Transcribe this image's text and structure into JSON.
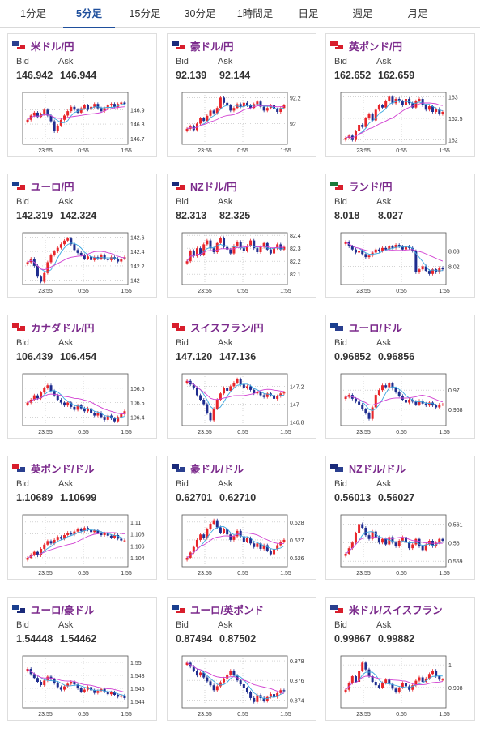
{
  "tabs": [
    {
      "label": "1分足",
      "active": false
    },
    {
      "label": "5分足",
      "active": true
    },
    {
      "label": "15分足",
      "active": false
    },
    {
      "label": "30分足",
      "active": false
    },
    {
      "label": "1時間足",
      "active": false
    },
    {
      "label": "日足",
      "active": false
    },
    {
      "label": "週足",
      "active": false
    },
    {
      "label": "月足",
      "active": false
    }
  ],
  "bid_label": "Bid",
  "ask_label": "Ask",
  "colors": {
    "up": "#e8262b",
    "down": "#1f2d8f",
    "ma_short": "#3ba7e0",
    "ma_long": "#d13fd1",
    "pair_text": "#7b2a8c",
    "tab_active": "#1f4f9c"
  },
  "cards": [
    {
      "pair": "米ドル/円",
      "bid": "146.942",
      "ask": "146.944",
      "flags": [
        "#2a3f8f",
        "#d81e2c"
      ],
      "chart_data": {
        "type": "candlestick",
        "x_ticks": [
          "23:55",
          "0:55",
          "1:55"
        ],
        "y_ticks": [
          "146.9",
          "146.8",
          "146.7"
        ],
        "ylim": [
          146.66,
          147.02
        ],
        "closes": [
          146.83,
          146.86,
          146.88,
          146.85,
          146.87,
          146.9,
          146.86,
          146.82,
          146.75,
          146.79,
          146.83,
          146.86,
          146.89,
          146.92,
          146.9,
          146.88,
          146.91,
          146.93,
          146.9,
          146.92,
          146.94,
          146.91,
          146.89,
          146.91,
          146.93,
          146.94,
          146.92,
          146.94,
          146.95,
          146.94
        ]
      }
    },
    {
      "pair": "豪ドル/円",
      "bid": "92.139",
      "ask": "92.144",
      "flags": [
        "#1a2a7a",
        "#d81e2c"
      ],
      "chart_data": {
        "type": "candlestick",
        "x_ticks": [
          "23:55",
          "0:55",
          "1:55"
        ],
        "y_ticks": [
          "92.2",
          "92"
        ],
        "ylim": [
          91.84,
          92.24
        ],
        "closes": [
          91.96,
          91.98,
          91.95,
          92.0,
          92.04,
          92.02,
          92.06,
          92.1,
          92.08,
          92.12,
          92.2,
          92.16,
          92.14,
          92.1,
          92.12,
          92.15,
          92.13,
          92.16,
          92.14,
          92.12,
          92.15,
          92.17,
          92.13,
          92.1,
          92.12,
          92.14,
          92.11,
          92.09,
          92.12,
          92.14
        ]
      }
    },
    {
      "pair": "英ポンド/円",
      "bid": "162.652",
      "ask": "162.659",
      "flags": [
        "#d81e2c",
        "#d81e2c"
      ],
      "chart_data": {
        "type": "candlestick",
        "x_ticks": [
          "23:55",
          "0:55",
          "1:55"
        ],
        "y_ticks": [
          "163",
          "162.5",
          "162"
        ],
        "ylim": [
          161.9,
          163.1
        ],
        "closes": [
          162.05,
          162.1,
          162.0,
          162.2,
          162.35,
          162.3,
          162.5,
          162.6,
          162.45,
          162.7,
          162.8,
          162.75,
          162.9,
          163.0,
          162.85,
          162.95,
          162.9,
          162.8,
          162.95,
          162.85,
          162.75,
          162.9,
          162.95,
          162.8,
          162.7,
          162.78,
          162.65,
          162.72,
          162.6,
          162.65
        ]
      }
    },
    {
      "pair": "ユーロ/円",
      "bid": "142.319",
      "ask": "142.324",
      "flags": [
        "#1a3f8f",
        "#d81e2c"
      ],
      "chart_data": {
        "type": "candlestick",
        "x_ticks": [
          "23:55",
          "0:55",
          "1:55"
        ],
        "y_ticks": [
          "142.6",
          "142.4",
          "142.2",
          "142"
        ],
        "ylim": [
          141.94,
          142.66
        ],
        "closes": [
          142.25,
          142.3,
          142.2,
          142.05,
          141.98,
          142.1,
          142.25,
          142.35,
          142.4,
          142.45,
          142.5,
          142.55,
          142.58,
          142.5,
          142.42,
          142.38,
          142.35,
          142.3,
          142.33,
          142.28,
          142.32,
          142.3,
          142.35,
          142.3,
          142.28,
          142.32,
          142.3,
          142.26,
          142.3,
          142.32
        ]
      }
    },
    {
      "pair": "NZドル/円",
      "bid": "82.313",
      "ask": "82.325",
      "flags": [
        "#1a2a7a",
        "#d81e2c"
      ],
      "chart_data": {
        "type": "candlestick",
        "x_ticks": [
          "23:55",
          "0:55",
          "1:55"
        ],
        "y_ticks": [
          "82.4",
          "82.3",
          "82.2",
          "82.1"
        ],
        "ylim": [
          82.02,
          82.42
        ],
        "closes": [
          82.2,
          82.28,
          82.24,
          82.3,
          82.25,
          82.33,
          82.36,
          82.3,
          82.27,
          82.34,
          82.38,
          82.31,
          82.29,
          82.26,
          82.32,
          82.35,
          82.3,
          82.28,
          82.32,
          82.36,
          82.3,
          82.27,
          82.31,
          82.34,
          82.29,
          82.26,
          82.3,
          82.33,
          82.29,
          82.31
        ]
      }
    },
    {
      "pair": "ランド/円",
      "bid": "8.018",
      "ask": "8.027",
      "flags": [
        "#1b7a3a",
        "#d81e2c"
      ],
      "chart_data": {
        "type": "candlestick",
        "x_ticks": [
          "23:55",
          "0:55",
          "1:55"
        ],
        "y_ticks": [
          "8.03",
          "8.02"
        ],
        "ylim": [
          8.008,
          8.042
        ],
        "closes": [
          8.036,
          8.033,
          8.031,
          8.029,
          8.03,
          8.028,
          8.026,
          8.027,
          8.029,
          8.031,
          8.03,
          8.032,
          8.031,
          8.033,
          8.032,
          8.034,
          8.033,
          8.031,
          8.033,
          8.032,
          8.03,
          8.016,
          8.018,
          8.02,
          8.017,
          8.015,
          8.018,
          8.016,
          8.019,
          8.018
        ]
      }
    },
    {
      "pair": "カナダドル/円",
      "bid": "106.439",
      "ask": "106.454",
      "flags": [
        "#d81e2c",
        "#d81e2c"
      ],
      "chart_data": {
        "type": "candlestick",
        "x_ticks": [
          "23:55",
          "0:55",
          "1:55"
        ],
        "y_ticks": [
          "106.6",
          "106.5",
          "106.4"
        ],
        "ylim": [
          106.34,
          106.7
        ],
        "closes": [
          106.5,
          106.52,
          106.55,
          106.53,
          106.57,
          106.6,
          106.62,
          106.58,
          106.55,
          106.52,
          106.5,
          106.48,
          106.5,
          106.47,
          106.45,
          106.48,
          106.46,
          106.44,
          106.46,
          106.43,
          106.41,
          106.43,
          106.4,
          106.38,
          106.41,
          106.39,
          106.37,
          106.4,
          106.42,
          106.44
        ]
      }
    },
    {
      "pair": "スイスフラン/円",
      "bid": "147.120",
      "ask": "147.136",
      "flags": [
        "#d81e2c",
        "#d81e2c"
      ],
      "chart_data": {
        "type": "candlestick",
        "x_ticks": [
          "23:55",
          "0:55",
          "1:55"
        ],
        "y_ticks": [
          "147.2",
          "147",
          "146.8"
        ],
        "ylim": [
          146.76,
          147.34
        ],
        "closes": [
          147.26,
          147.22,
          147.18,
          147.1,
          147.05,
          147.0,
          146.9,
          146.82,
          146.95,
          147.05,
          147.12,
          147.18,
          147.15,
          147.2,
          147.24,
          147.28,
          147.22,
          147.18,
          147.2,
          147.16,
          147.12,
          147.14,
          147.1,
          147.08,
          147.12,
          147.1,
          147.06,
          147.09,
          147.12,
          147.13
        ]
      }
    },
    {
      "pair": "ユーロ/ドル",
      "bid": "0.96852",
      "ask": "0.96856",
      "flags": [
        "#1a3f8f",
        "#2a3f8f"
      ],
      "chart_data": {
        "type": "candlestick",
        "x_ticks": [
          "23:55",
          "0:55",
          "1:55"
        ],
        "y_ticks": [
          "0.97",
          "0.968"
        ],
        "ylim": [
          0.9663,
          0.9717
        ],
        "closes": [
          0.9693,
          0.9695,
          0.9691,
          0.9688,
          0.9685,
          0.968,
          0.9676,
          0.967,
          0.9682,
          0.9695,
          0.97,
          0.9705,
          0.9703,
          0.9707,
          0.9702,
          0.9698,
          0.9694,
          0.969,
          0.9687,
          0.969,
          0.9688,
          0.9685,
          0.9689,
          0.9686,
          0.9684,
          0.9687,
          0.9684,
          0.9682,
          0.9685,
          0.9685
        ]
      }
    },
    {
      "pair": "英ポンド/ドル",
      "bid": "1.10689",
      "ask": "1.10699",
      "flags": [
        "#d81e2c",
        "#2a3f8f"
      ],
      "chart_data": {
        "type": "candlestick",
        "x_ticks": [
          "23:55",
          "0:55",
          "1:55"
        ],
        "y_ticks": [
          "1.11",
          "1.108",
          "1.106",
          "1.104"
        ],
        "ylim": [
          1.1025,
          1.1112
        ],
        "closes": [
          1.104,
          1.1045,
          1.105,
          1.1044,
          1.1055,
          1.1062,
          1.1068,
          1.1064,
          1.107,
          1.1075,
          1.1072,
          1.1078,
          1.1082,
          1.1079,
          1.1084,
          1.1088,
          1.1085,
          1.109,
          1.1087,
          1.1083,
          1.1086,
          1.1082,
          1.1078,
          1.1081,
          1.1077,
          1.1074,
          1.1078,
          1.1072,
          1.1069,
          1.1069
        ]
      }
    },
    {
      "pair": "豪ドル/ドル",
      "bid": "0.62701",
      "ask": "0.62710",
      "flags": [
        "#1a2a7a",
        "#2a3f8f"
      ],
      "chart_data": {
        "type": "candlestick",
        "x_ticks": [
          "23:55",
          "0:55",
          "1:55"
        ],
        "y_ticks": [
          "0.628",
          "0.627",
          "0.626"
        ],
        "ylim": [
          0.6255,
          0.6284
        ],
        "closes": [
          0.626,
          0.6263,
          0.6266,
          0.627,
          0.6273,
          0.6271,
          0.6276,
          0.6279,
          0.6281,
          0.6277,
          0.6274,
          0.6276,
          0.6273,
          0.627,
          0.6272,
          0.6275,
          0.6272,
          0.6269,
          0.6271,
          0.6268,
          0.6266,
          0.6268,
          0.6265,
          0.6267,
          0.6264,
          0.6262,
          0.6265,
          0.6267,
          0.6269,
          0.627
        ]
      }
    },
    {
      "pair": "NZドル/ドル",
      "bid": "0.56013",
      "ask": "0.56027",
      "flags": [
        "#1a2a7a",
        "#2a3f8f"
      ],
      "chart_data": {
        "type": "candlestick",
        "x_ticks": [
          "23:55",
          "0:55",
          "1:55"
        ],
        "y_ticks": [
          "0.561",
          "0.56",
          "0.559"
        ],
        "ylim": [
          0.5587,
          0.5615
        ],
        "closes": [
          0.5594,
          0.5597,
          0.56,
          0.5605,
          0.561,
          0.5608,
          0.5604,
          0.5602,
          0.5606,
          0.5603,
          0.56,
          0.5602,
          0.5599,
          0.5603,
          0.56,
          0.5598,
          0.5601,
          0.5603,
          0.56,
          0.5597,
          0.5599,
          0.5602,
          0.5598,
          0.5596,
          0.5599,
          0.5601,
          0.5598,
          0.56,
          0.5602,
          0.5601
        ]
      }
    },
    {
      "pair": "ユーロ/豪ドル",
      "bid": "1.54448",
      "ask": "1.54462",
      "flags": [
        "#1a3f8f",
        "#1a2a7a"
      ],
      "chart_data": {
        "type": "candlestick",
        "x_ticks": [
          "23:55",
          "0:55",
          "1:55"
        ],
        "y_ticks": [
          "1.55",
          "1.548",
          "1.546",
          "1.544"
        ],
        "ylim": [
          1.543,
          1.551
        ],
        "closes": [
          1.549,
          1.5482,
          1.5476,
          1.547,
          1.5465,
          1.5472,
          1.5478,
          1.5474,
          1.5468,
          1.5462,
          1.5458,
          1.5463,
          1.5467,
          1.547,
          1.5466,
          1.546,
          1.5455,
          1.5458,
          1.5462,
          1.5457,
          1.5453,
          1.5456,
          1.5459,
          1.5455,
          1.5451,
          1.5454,
          1.545,
          1.5447,
          1.5449,
          1.5445
        ]
      }
    },
    {
      "pair": "ユーロ/英ポンド",
      "bid": "0.87494",
      "ask": "0.87502",
      "flags": [
        "#1a3f8f",
        "#d81e2c"
      ],
      "chart_data": {
        "type": "candlestick",
        "x_ticks": [
          "23:55",
          "0:55",
          "1:55"
        ],
        "y_ticks": [
          "0.878",
          "0.876",
          "0.874"
        ],
        "ylim": [
          0.8732,
          0.8785
        ],
        "closes": [
          0.8778,
          0.8774,
          0.877,
          0.8765,
          0.8768,
          0.8763,
          0.8759,
          0.8755,
          0.875,
          0.8754,
          0.8758,
          0.8762,
          0.8766,
          0.877,
          0.8765,
          0.876,
          0.8756,
          0.8752,
          0.8748,
          0.8742,
          0.8738,
          0.8745,
          0.8742,
          0.8739,
          0.8743,
          0.8746,
          0.8743,
          0.8747,
          0.875,
          0.8749
        ]
      }
    },
    {
      "pair": "米ドル/スイスフラン",
      "bid": "0.99867",
      "ask": "0.99882",
      "flags": [
        "#2a3f8f",
        "#d81e2c"
      ],
      "chart_data": {
        "type": "candlestick",
        "x_ticks": [
          "23:55",
          "0:55",
          "1:55"
        ],
        "y_ticks": [
          "1",
          "0.998"
        ],
        "ylim": [
          0.9962,
          1.0008
        ],
        "closes": [
          0.9978,
          0.9984,
          0.999,
          0.9985,
          0.9995,
          1.0002,
          0.9996,
          0.999,
          0.9985,
          0.9982,
          0.998,
          0.9984,
          0.9987,
          0.9983,
          0.9979,
          0.9976,
          0.998,
          0.9984,
          0.9981,
          0.9978,
          0.9982,
          0.9986,
          0.9989,
          0.9985,
          0.9988,
          0.9992,
          0.9995,
          0.999,
          0.9987,
          0.9987
        ]
      }
    }
  ]
}
